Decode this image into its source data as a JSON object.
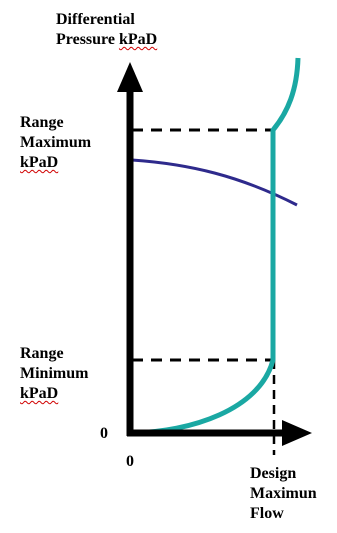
{
  "labels": {
    "y_axis_line1": "Differential",
    "y_axis_line2_prefix": "Pressure ",
    "y_axis_line2_unit": "kPaD",
    "range_max_line1": "Range",
    "range_max_line2": "Maximum",
    "range_max_line3": "kPaD",
    "range_min_line1": "Range",
    "range_min_line2": "Minimum",
    "range_min_line3": "kPaD",
    "origin_y": "0",
    "origin_x": "0",
    "design_line1": "Design",
    "design_line2": "Maximun",
    "design_line3": "Flow"
  },
  "colors": {
    "axis": "#000000",
    "teal_curve": "#1aa8a3",
    "blue_curve": "#2e2a8c",
    "dashed": "#000000",
    "spell_mark": "#d00000"
  }
}
